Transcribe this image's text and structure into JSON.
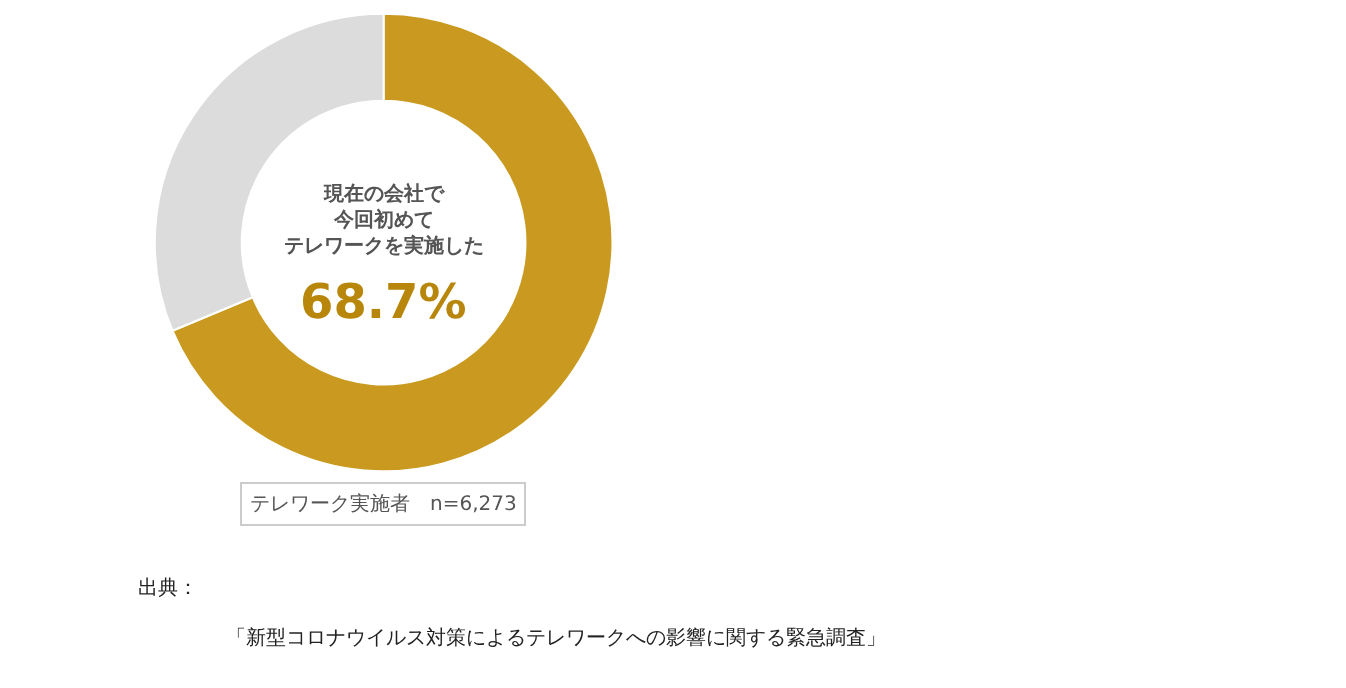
{
  "chart_data": {
    "type": "donut",
    "categories": [
      "現在の会社で今回初めてテレワークを実施した",
      null
    ],
    "values": [
      68.7,
      31.3
    ],
    "colors": [
      "#c99a1f",
      "#dcdcdc"
    ],
    "value_labels": [
      "68.7%",
      null
    ],
    "legend": false,
    "annotations": [
      "テレワーク実施者　n=6,273",
      "出典：",
      "「新型コロナウイルス対策によるテレワークへの影響に関する緊急調査」"
    ]
  }
}
